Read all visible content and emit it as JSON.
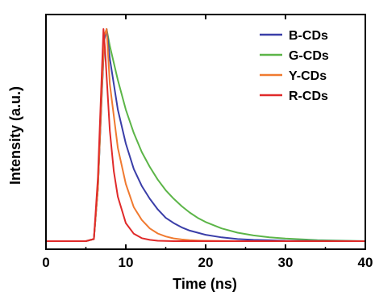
{
  "chart_data": {
    "type": "line",
    "title": "",
    "xlabel": "Time (ns)",
    "ylabel": "Intensity (a.u.)",
    "xlim": [
      0,
      40
    ],
    "ylim": [
      0,
      1
    ],
    "x_ticks": [
      0,
      10,
      20,
      30,
      40
    ],
    "x_tick_labels": [
      "0",
      "10",
      "20",
      "30",
      "40"
    ],
    "y_ticks_shown": false,
    "grid": false,
    "legend_position": "top-right",
    "series": [
      {
        "name": "B-CDs",
        "color": "#3a3ea8",
        "x": [
          0,
          5,
          6,
          6.5,
          7,
          7.3,
          7.6,
          8,
          9,
          10,
          11,
          12,
          13,
          14,
          15,
          16,
          17,
          18,
          19,
          20,
          22,
          24,
          26,
          28,
          30,
          34,
          40
        ],
        "y": [
          0,
          0,
          0.01,
          0.25,
          0.7,
          0.95,
          1.0,
          0.86,
          0.62,
          0.46,
          0.34,
          0.26,
          0.2,
          0.15,
          0.11,
          0.085,
          0.065,
          0.05,
          0.04,
          0.03,
          0.018,
          0.01,
          0.006,
          0.004,
          0.002,
          0.001,
          0
        ]
      },
      {
        "name": "G-CDs",
        "color": "#5cb548",
        "x": [
          0,
          5,
          6,
          6.5,
          7,
          7.3,
          7.6,
          8,
          9,
          10,
          11,
          12,
          13,
          14,
          15,
          16,
          17,
          18,
          19,
          20,
          22,
          24,
          26,
          28,
          30,
          34,
          40
        ],
        "y": [
          0,
          0,
          0.01,
          0.25,
          0.7,
          0.95,
          1.0,
          0.92,
          0.76,
          0.62,
          0.51,
          0.42,
          0.35,
          0.29,
          0.24,
          0.2,
          0.165,
          0.135,
          0.11,
          0.09,
          0.06,
          0.04,
          0.027,
          0.018,
          0.012,
          0.005,
          0
        ]
      },
      {
        "name": "Y-CDs",
        "color": "#f07a30",
        "x": [
          0,
          5,
          6,
          6.5,
          7,
          7.3,
          7.6,
          8,
          9,
          10,
          11,
          12,
          13,
          14,
          15,
          16,
          17,
          18,
          19,
          20,
          22,
          24,
          26,
          28,
          30,
          34,
          40
        ],
        "y": [
          0,
          0,
          0.01,
          0.25,
          0.72,
          0.97,
          1.0,
          0.74,
          0.44,
          0.27,
          0.16,
          0.1,
          0.06,
          0.036,
          0.022,
          0.013,
          0.008,
          0.005,
          0.003,
          0.002,
          0.001,
          0,
          0,
          0,
          0,
          0,
          0
        ]
      },
      {
        "name": "R-CDs",
        "color": "#e02a2a",
        "x": [
          0,
          5,
          6,
          6.5,
          7,
          7.2,
          7.4,
          8,
          8.5,
          9,
          10,
          11,
          12,
          13,
          14,
          15,
          16,
          17,
          18,
          19,
          20,
          22,
          24,
          26,
          28,
          30,
          40
        ],
        "y": [
          0,
          0,
          0.01,
          0.3,
          0.8,
          1.0,
          0.9,
          0.52,
          0.33,
          0.21,
          0.085,
          0.035,
          0.014,
          0.006,
          0.002,
          0.001,
          0,
          0,
          0,
          0,
          0,
          0,
          0,
          0,
          0,
          0,
          0
        ]
      }
    ]
  }
}
